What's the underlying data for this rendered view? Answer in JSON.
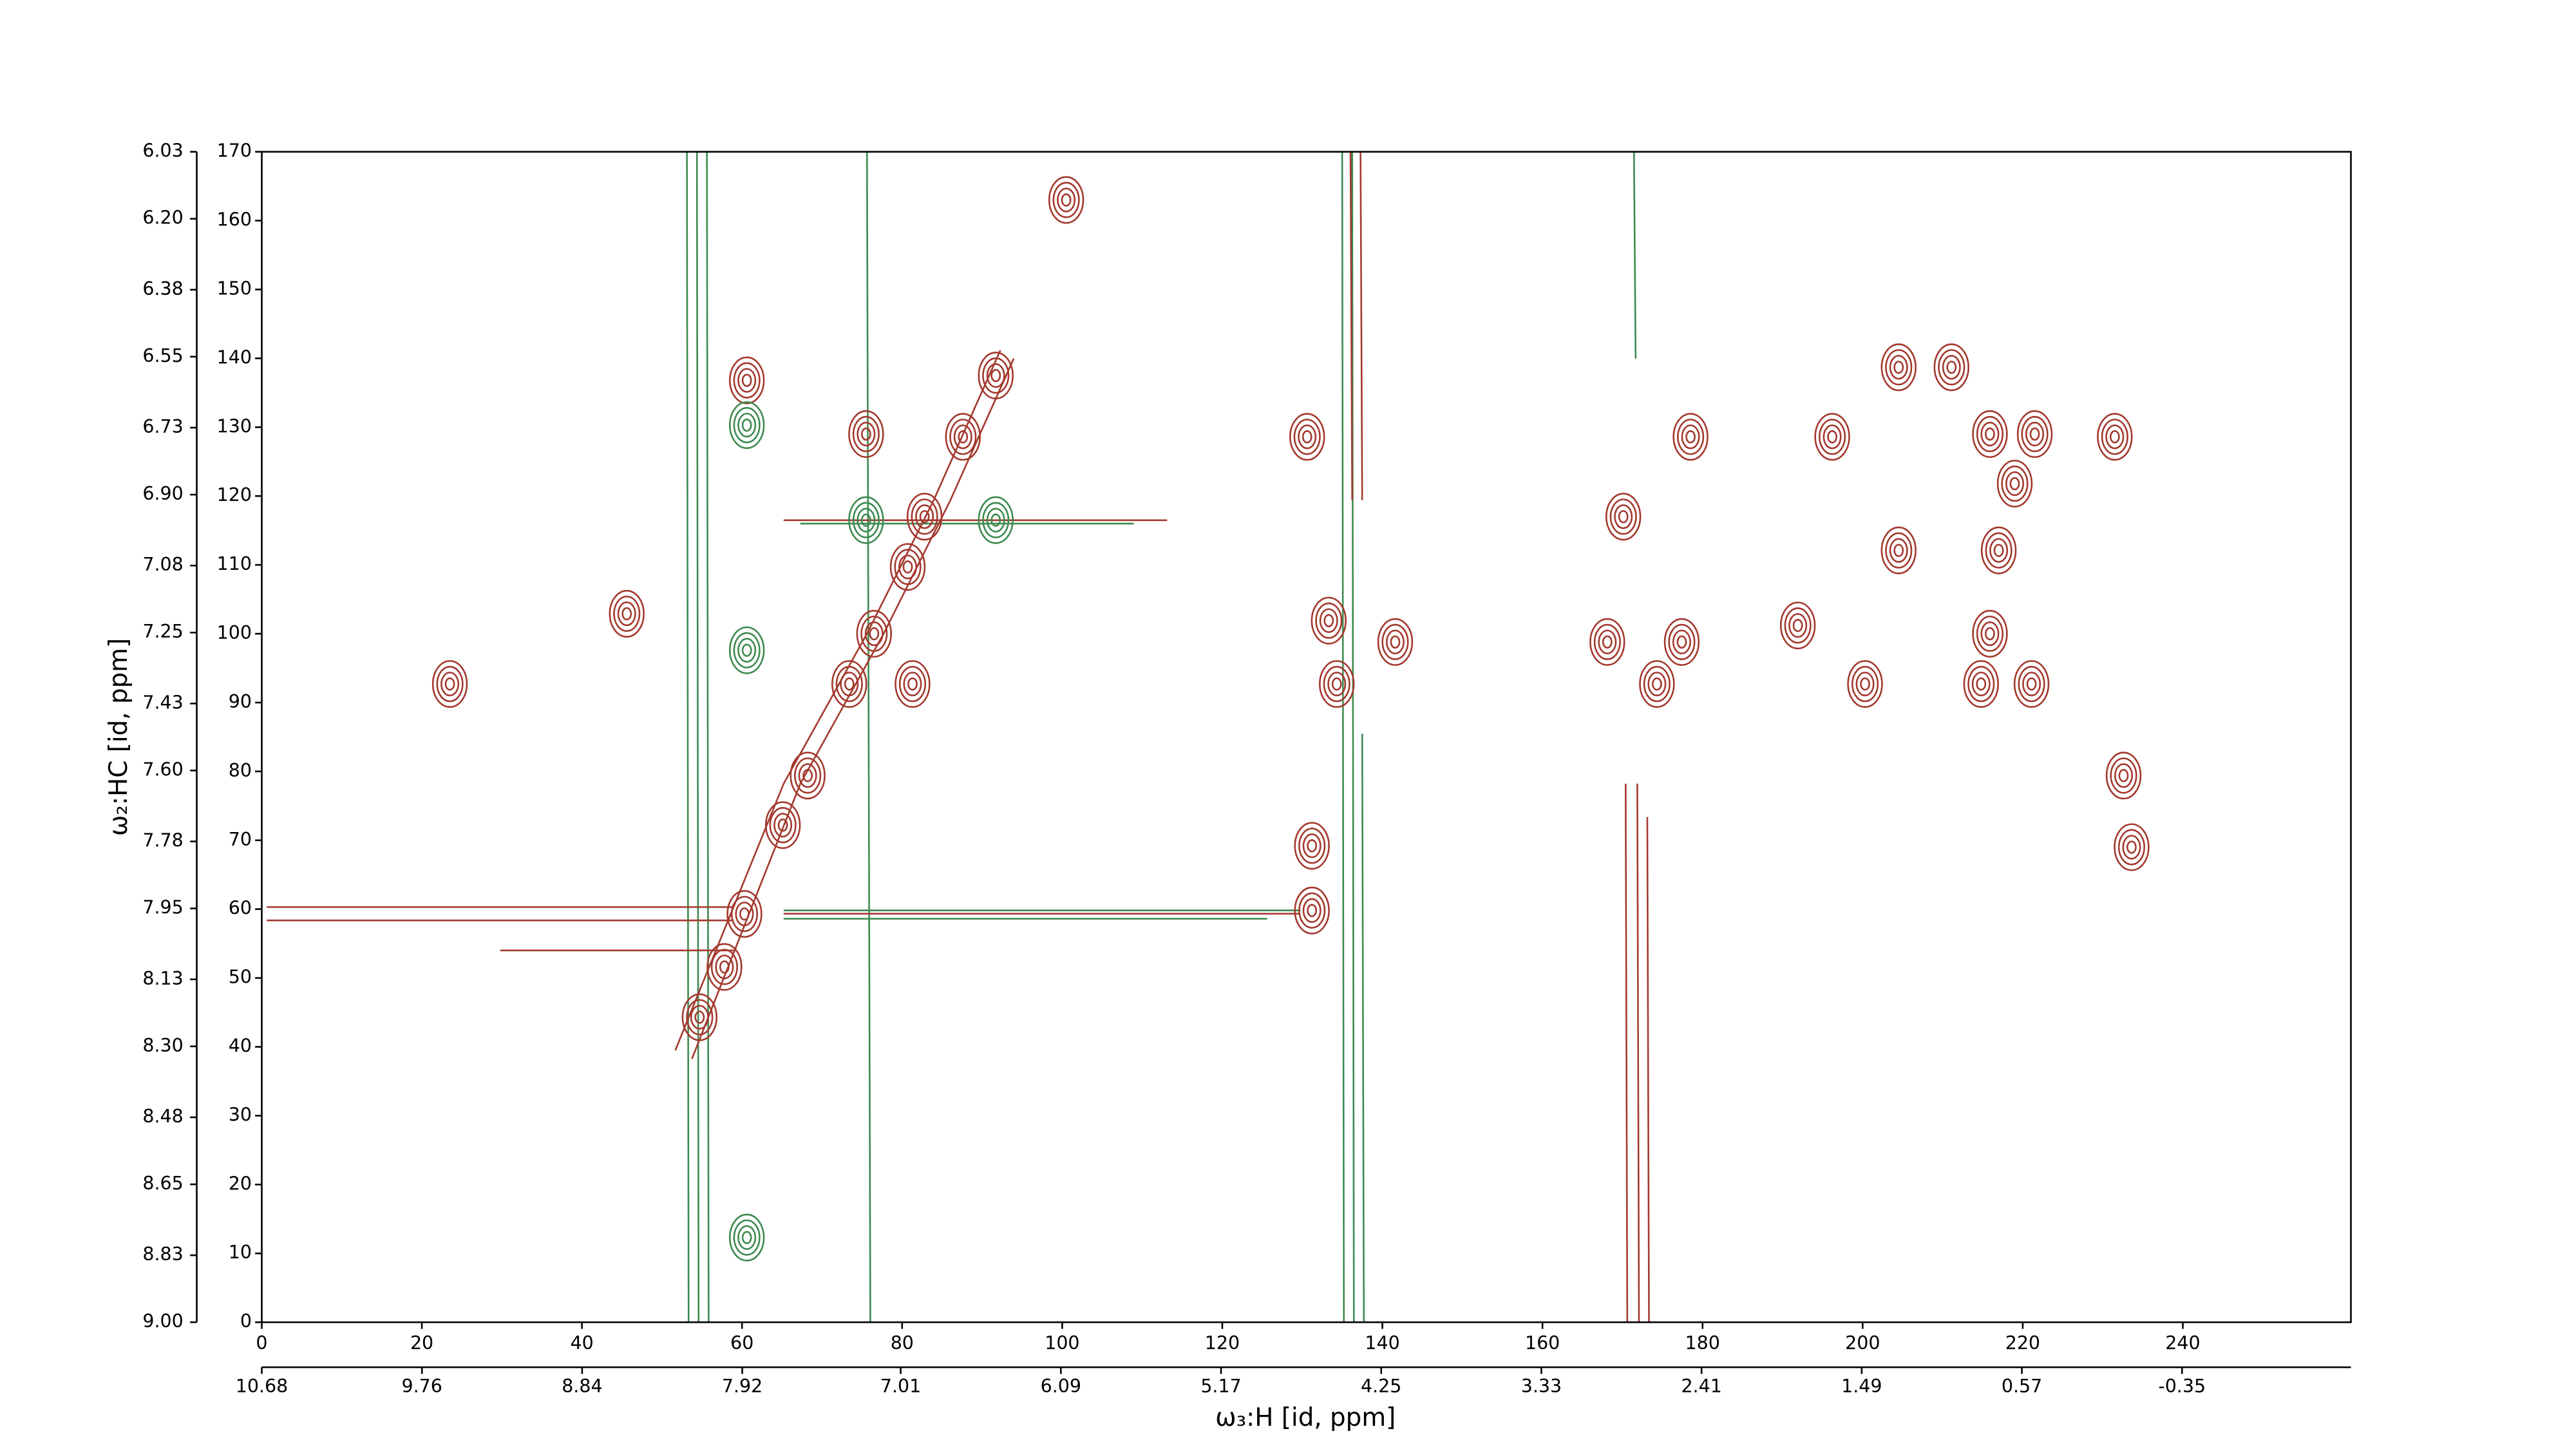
{
  "chart_data": {
    "type": "contour",
    "x_label": "ω₃:H [id, ppm]",
    "y_label": "ω₂:HC [id, ppm]",
    "xlim": [
      0,
      261
    ],
    "xticks": [
      0,
      20,
      40,
      60,
      80,
      100,
      120,
      140,
      160,
      180,
      200,
      220,
      240
    ],
    "x2lim": [
      10.68,
      -1.32
    ],
    "x2ticks": [
      10.68,
      9.76,
      8.84,
      7.92,
      7.01,
      6.09,
      5.17,
      4.25,
      3.33,
      2.41,
      1.49,
      0.57,
      -0.35
    ],
    "ylim": [
      0,
      170
    ],
    "yticks": [
      0,
      10,
      20,
      30,
      40,
      50,
      60,
      70,
      80,
      90,
      100,
      110,
      120,
      130,
      140,
      150,
      160,
      170
    ],
    "y2lim": [
      9.0,
      6.03
    ],
    "y2ticks": [
      {
        "value": 9.0,
        "label": "9.00"
      },
      8.83,
      8.65,
      8.48,
      {
        "value": 8.3,
        "label": "8.30"
      },
      8.13,
      7.95,
      7.78,
      {
        "value": 7.6,
        "label": "7.60"
      },
      7.43,
      7.25,
      7.08,
      {
        "value": 6.9,
        "label": "6.90"
      },
      6.73,
      6.55,
      6.38,
      {
        "value": 6.2,
        "label": "6.20"
      },
      6.03
    ],
    "positive": {
      "color": "#a3392e",
      "x": [
        54.7,
        57.8,
        60.3,
        65.1,
        68.2,
        73.4,
        76.5,
        80.7,
        82.8,
        75.5,
        87.6,
        91.7,
        81.3,
        60.6,
        100.5,
        23.5,
        45.6,
        130.6,
        131.2,
        131.2,
        134.3,
        141.6,
        133.3,
        170.1,
        168.1,
        177.4,
        174.3,
        191.9,
        200.3,
        204.5,
        211.1,
        215.9,
        221.5,
        231.5,
        215.9,
        221.1,
        214.8,
        204.5,
        217.0,
        219.0,
        233.6,
        232.6,
        178.5,
        196.2
      ],
      "y": [
        44.3,
        51.6,
        59.3,
        72.2,
        79.4,
        92.7,
        100.0,
        109.7,
        117.0,
        129.0,
        128.6,
        137.5,
        92.7,
        136.8,
        163.0,
        92.7,
        102.9,
        128.6,
        69.2,
        59.8,
        92.7,
        98.8,
        101.9,
        117.0,
        98.8,
        98.8,
        92.7,
        101.2,
        92.7,
        138.7,
        138.7,
        129.0,
        129.0,
        128.6,
        100.0,
        92.7,
        92.7,
        112.1,
        112.1,
        121.8,
        69.0,
        79.4,
        128.6,
        128.6
      ]
    },
    "negative": {
      "color": "#3d8a4f",
      "x": [
        60.6,
        60.6,
        60.6,
        75.5,
        91.7
      ],
      "y": [
        130.3,
        97.6,
        12.3,
        116.5,
        116.5
      ]
    }
  }
}
